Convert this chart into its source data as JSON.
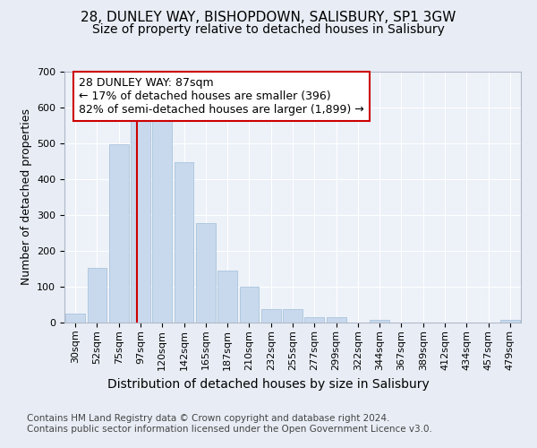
{
  "title_line1": "28, DUNLEY WAY, BISHOPDOWN, SALISBURY, SP1 3GW",
  "title_line2": "Size of property relative to detached houses in Salisbury",
  "xlabel": "Distribution of detached houses by size in Salisbury",
  "ylabel": "Number of detached properties",
  "categories": [
    "30sqm",
    "52sqm",
    "75sqm",
    "97sqm",
    "120sqm",
    "142sqm",
    "165sqm",
    "187sqm",
    "210sqm",
    "232sqm",
    "255sqm",
    "277sqm",
    "299sqm",
    "322sqm",
    "344sqm",
    "367sqm",
    "389sqm",
    "412sqm",
    "434sqm",
    "457sqm",
    "479sqm"
  ],
  "bar_heights": [
    25,
    153,
    497,
    573,
    573,
    448,
    277,
    145,
    100,
    38,
    38,
    15,
    15,
    0,
    8,
    0,
    0,
    0,
    0,
    0,
    7
  ],
  "bar_color": "#c9d9ed",
  "bar_edge_color": "#a8c4dc",
  "vline_color": "#cc0000",
  "vline_x_idx": 2.82,
  "annotation_line1": "28 DUNLEY WAY: 87sqm",
  "annotation_line2": "← 17% of detached houses are smaller (396)",
  "annotation_line3": "82% of semi-detached houses are larger (1,899) →",
  "annotation_box_color": "#ffffff",
  "annotation_box_edge": "#cc0000",
  "ylim": [
    0,
    700
  ],
  "yticks": [
    0,
    100,
    200,
    300,
    400,
    500,
    600,
    700
  ],
  "bg_color": "#e8edf5",
  "plot_bg_color": "#edf1f8",
  "footer_text": "Contains HM Land Registry data © Crown copyright and database right 2024.\nContains public sector information licensed under the Open Government Licence v3.0.",
  "title_fontsize": 11,
  "subtitle_fontsize": 10,
  "ylabel_fontsize": 9,
  "xlabel_fontsize": 10,
  "tick_fontsize": 8,
  "annot_fontsize": 9,
  "footer_fontsize": 7.5
}
